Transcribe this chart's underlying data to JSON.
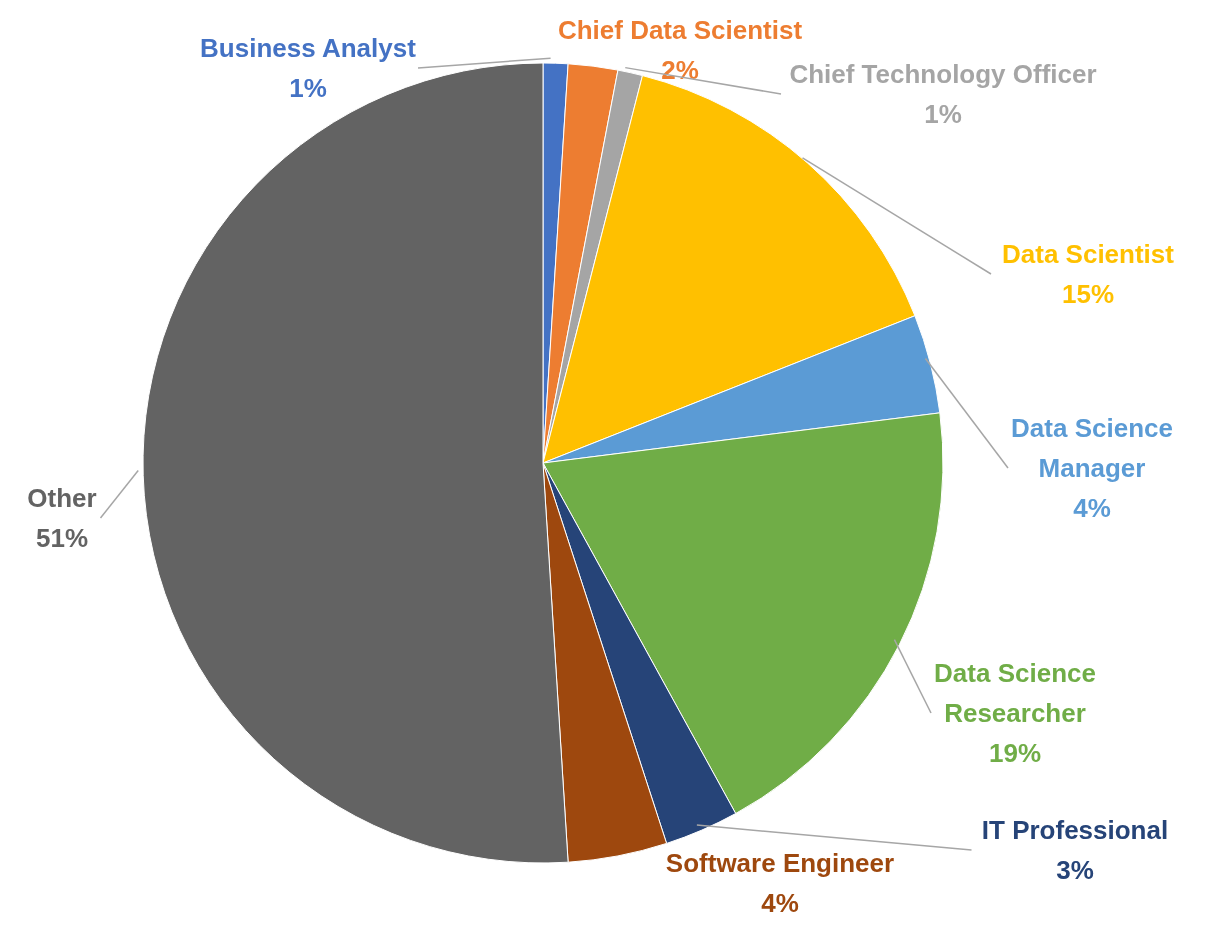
{
  "chart_data": {
    "type": "pie",
    "categories": [
      "Business Analyst",
      "Chief Data Scientist",
      "Chief Technology Officer",
      "Data Scientist",
      "Data Science Manager",
      "Data Science Researcher",
      "IT Professional",
      "Software Engineer",
      "Other"
    ],
    "values": [
      1,
      2,
      1,
      15,
      4,
      19,
      3,
      4,
      51
    ],
    "value_labels": [
      "1%",
      "2%",
      "1%",
      "15%",
      "4%",
      "19%",
      "3%",
      "4%",
      "51%"
    ],
    "colors": [
      "#4472c4",
      "#ed7d31",
      "#a5a5a5",
      "#ffc000",
      "#5b9bd5",
      "#70ad47",
      "#264478",
      "#9e480e",
      "#636363"
    ]
  }
}
